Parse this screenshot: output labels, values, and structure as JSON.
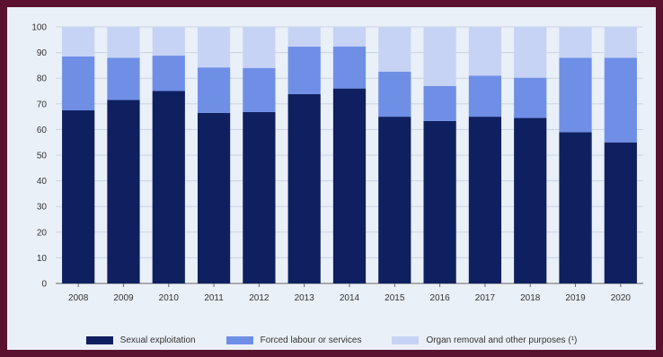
{
  "chart_data": {
    "type": "bar",
    "stacked": true,
    "categories": [
      "2008",
      "2009",
      "2010",
      "2011",
      "2012",
      "2013",
      "2014",
      "2015",
      "2016",
      "2017",
      "2018",
      "2019",
      "2020"
    ],
    "series": [
      {
        "name": "Sexual exploitation",
        "color": "#0f2060",
        "values": [
          67.5,
          71.5,
          75,
          66.5,
          66.8,
          73.8,
          76,
          65,
          63.3,
          65,
          64.5,
          59,
          55
        ]
      },
      {
        "name": "Forced labour or services",
        "color": "#6f8fe6",
        "values": [
          21,
          16.5,
          13.8,
          17.7,
          17.2,
          18.5,
          16.4,
          17.6,
          13.7,
          16,
          15.7,
          29,
          33
        ]
      },
      {
        "name": "Organ removal and other purposes (¹)",
        "color": "#c7d3f5",
        "values": [
          11.5,
          12,
          11.2,
          15.8,
          16,
          7.7,
          7.6,
          17.4,
          23,
          19,
          19.8,
          12,
          12
        ]
      }
    ],
    "yticks": [
      0,
      10,
      20,
      30,
      40,
      50,
      60,
      70,
      80,
      90,
      100
    ],
    "ylim": [
      0,
      100
    ],
    "grid": true,
    "legend": "bottom"
  }
}
